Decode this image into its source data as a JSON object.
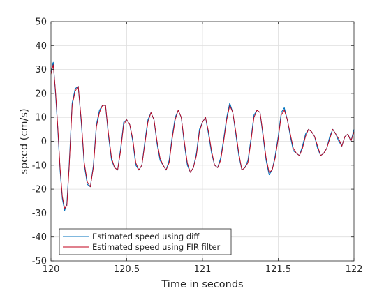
{
  "chart_data": {
    "type": "line",
    "title": "",
    "xlabel": "Time in seconds",
    "ylabel": "speed (cm/s)",
    "xlim": [
      120,
      122
    ],
    "ylim": [
      -50,
      50
    ],
    "xticks": [
      120,
      120.5,
      121,
      121.5,
      122
    ],
    "xtick_labels": [
      "120",
      "120.5",
      "121",
      "121.5",
      "122"
    ],
    "yticks": [
      -50,
      -40,
      -30,
      -20,
      -10,
      0,
      10,
      20,
      30,
      40,
      50
    ],
    "ytick_labels": [
      "-50",
      "-40",
      "-30",
      "-20",
      "-10",
      "0",
      "10",
      "20",
      "30",
      "40",
      "50"
    ],
    "grid": true,
    "legend_position": "bottom-left",
    "series": [
      {
        "name": "Estimated speed using diff",
        "color": "#0072BD",
        "x": [
          120.0,
          120.015,
          120.03,
          120.045,
          120.06,
          120.075,
          120.09,
          120.105,
          120.12,
          120.14,
          120.16,
          120.18,
          120.2,
          120.22,
          120.24,
          120.26,
          120.28,
          120.3,
          120.32,
          120.34,
          120.36,
          120.38,
          120.4,
          120.42,
          120.44,
          120.46,
          120.48,
          120.5,
          120.52,
          120.54,
          120.56,
          120.58,
          120.6,
          120.62,
          120.64,
          120.66,
          120.68,
          120.7,
          120.72,
          120.74,
          120.76,
          120.78,
          120.8,
          120.82,
          120.84,
          120.86,
          120.88,
          120.9,
          120.92,
          120.94,
          120.96,
          120.98,
          121.0,
          121.02,
          121.04,
          121.06,
          121.08,
          121.1,
          121.12,
          121.14,
          121.16,
          121.18,
          121.2,
          121.22,
          121.24,
          121.26,
          121.28,
          121.3,
          121.32,
          121.34,
          121.36,
          121.38,
          121.4,
          121.42,
          121.44,
          121.46,
          121.48,
          121.5,
          121.52,
          121.54,
          121.56,
          121.58,
          121.6,
          121.62,
          121.64,
          121.66,
          121.68,
          121.7,
          121.72,
          121.74,
          121.76,
          121.78,
          121.8,
          121.82,
          121.84,
          121.86,
          121.88,
          121.9,
          121.92,
          121.94,
          121.96,
          121.98,
          122.0
        ],
        "y": [
          29,
          33,
          20,
          5,
          -12,
          -24,
          -29,
          -26,
          -10,
          16,
          22,
          23,
          8,
          -10,
          -18,
          -19,
          -10,
          7,
          13,
          15,
          15,
          2,
          -8,
          -11,
          -12,
          -3,
          8,
          9,
          7,
          0,
          -10,
          -12,
          -10,
          0,
          9,
          12,
          9,
          -1,
          -8,
          -10,
          -12,
          -8,
          2,
          10,
          13,
          10,
          -1,
          -10,
          -13,
          -11,
          -5,
          5,
          8,
          10,
          3,
          -5,
          -10,
          -11,
          -7,
          1,
          10,
          16,
          12,
          3,
          -6,
          -12,
          -11,
          -8,
          1,
          11,
          13,
          12,
          2,
          -8,
          -14,
          -12,
          -6,
          2,
          12,
          14,
          9,
          2,
          -4,
          -5,
          -6,
          -2,
          3,
          5,
          4,
          2,
          -3,
          -6,
          -5,
          -3,
          2,
          5,
          3,
          0,
          -2,
          2,
          3,
          0,
          5
        ]
      },
      {
        "name": "Estimated speed using FIR filter",
        "color": "#C0001B",
        "x": [
          120.0,
          120.015,
          120.03,
          120.045,
          120.06,
          120.075,
          120.09,
          120.105,
          120.12,
          120.14,
          120.16,
          120.18,
          120.2,
          120.22,
          120.24,
          120.26,
          120.28,
          120.3,
          120.32,
          120.34,
          120.36,
          120.38,
          120.4,
          120.42,
          120.44,
          120.46,
          120.48,
          120.5,
          120.52,
          120.54,
          120.56,
          120.58,
          120.6,
          120.62,
          120.64,
          120.66,
          120.68,
          120.7,
          120.72,
          120.74,
          120.76,
          120.78,
          120.8,
          120.82,
          120.84,
          120.86,
          120.88,
          120.9,
          120.92,
          120.94,
          120.96,
          120.98,
          121.0,
          121.02,
          121.04,
          121.06,
          121.08,
          121.1,
          121.12,
          121.14,
          121.16,
          121.18,
          121.2,
          121.22,
          121.24,
          121.26,
          121.28,
          121.3,
          121.32,
          121.34,
          121.36,
          121.38,
          121.4,
          121.42,
          121.44,
          121.46,
          121.48,
          121.5,
          121.52,
          121.54,
          121.56,
          121.58,
          121.6,
          121.62,
          121.64,
          121.66,
          121.68,
          121.7,
          121.72,
          121.74,
          121.76,
          121.78,
          121.8,
          121.82,
          121.84,
          121.86,
          121.88,
          121.9,
          121.92,
          121.94,
          121.96,
          121.98,
          122.0
        ],
        "y": [
          28,
          32,
          21,
          6,
          -11,
          -23,
          -28,
          -27,
          -11,
          15,
          21,
          23,
          9,
          -9,
          -17,
          -19,
          -11,
          6,
          12,
          15,
          15,
          3,
          -7,
          -11,
          -12,
          -4,
          7,
          9,
          7,
          1,
          -9,
          -12,
          -10,
          -1,
          8,
          12,
          9,
          0,
          -7,
          -10,
          -12,
          -9,
          1,
          9,
          13,
          10,
          0,
          -9,
          -13,
          -11,
          -6,
          4,
          8,
          10,
          4,
          -4,
          -10,
          -11,
          -8,
          0,
          9,
          15,
          12,
          4,
          -5,
          -12,
          -11,
          -9,
          0,
          10,
          13,
          12,
          3,
          -7,
          -13,
          -12,
          -7,
          1,
          11,
          13,
          9,
          3,
          -3,
          -5,
          -6,
          -3,
          2,
          5,
          4,
          2,
          -2,
          -6,
          -5,
          -3,
          1,
          5,
          3,
          1,
          -2,
          2,
          3,
          0,
          4
        ]
      }
    ]
  }
}
